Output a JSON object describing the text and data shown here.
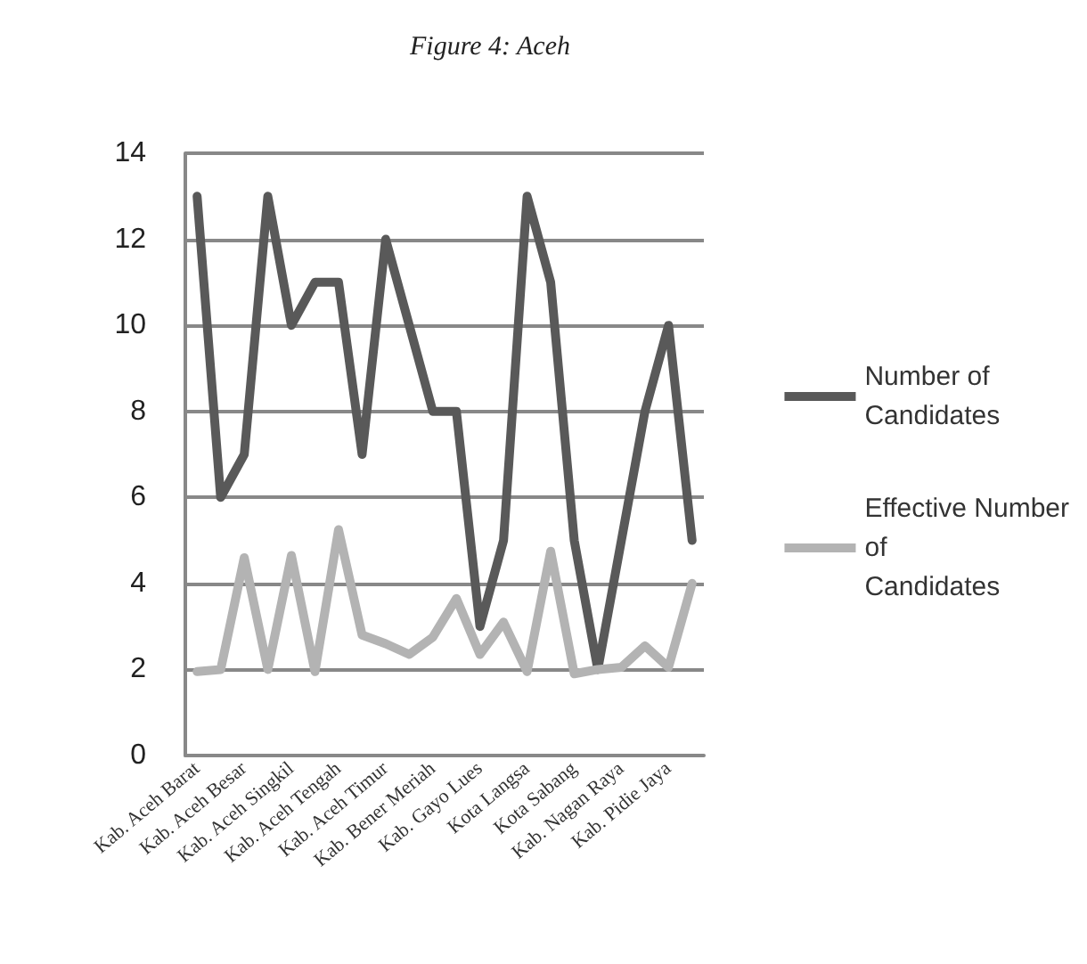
{
  "chart_data": {
    "type": "line",
    "title": "Figure 4: Aceh",
    "categories": [
      "Kab. Aceh Barat",
      null,
      "Kab. Aceh Besar",
      null,
      "Kab. Aceh Singkil",
      null,
      "Kab. Aceh Tengah",
      null,
      "Kab. Aceh Timur",
      null,
      "Kab. Bener Meriah",
      null,
      "Kab. Gayo Lues",
      null,
      "Kota Langsa",
      null,
      "Kota Sabang",
      null,
      "Kab. Nagan Raya",
      null,
      "Kab. Pidie Jaya",
      null
    ],
    "series": [
      {
        "name": "Number of Candidates",
        "color": "#595959",
        "values": [
          13,
          6,
          7,
          13,
          10,
          11,
          11,
          7,
          12,
          10,
          8,
          8,
          3,
          5,
          13,
          11,
          5,
          2,
          5,
          8,
          10,
          5
        ]
      },
      {
        "name": "Effective Number of Candidates",
        "color": "#b3b3b3",
        "values": [
          1.95,
          2.0,
          4.6,
          2.0,
          4.65,
          1.95,
          5.25,
          2.8,
          2.6,
          2.35,
          2.75,
          3.65,
          2.35,
          3.1,
          1.95,
          4.75,
          1.9,
          2.0,
          2.05,
          2.55,
          2.05,
          4.0
        ]
      }
    ],
    "ylim": [
      0,
      14
    ],
    "yticks": [
      0,
      2,
      4,
      6,
      8,
      10,
      12,
      14
    ],
    "grid": "y",
    "legend": "right",
    "marker": "none",
    "line_style": "solid"
  }
}
